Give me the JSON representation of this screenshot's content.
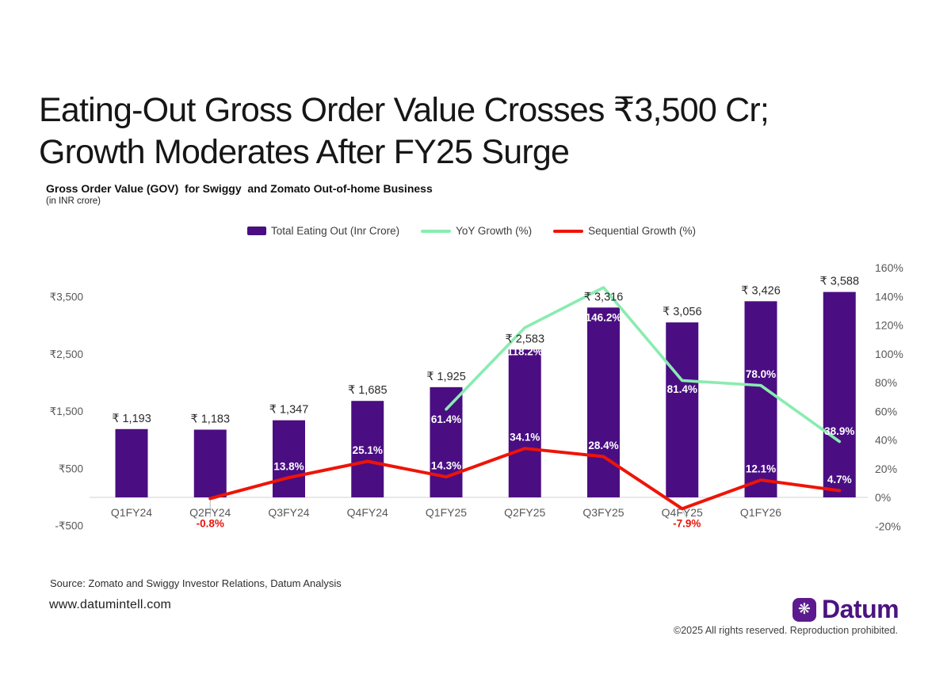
{
  "title": {
    "line1": "Eating-Out Gross Order Value Crosses ₹3,500 Cr;",
    "line2": "Growth Moderates After FY25 Surge"
  },
  "legend": {
    "items": [
      {
        "label": "Total Eating Out (Inr Crore)",
        "type": "swatch",
        "color": "#4A0E82"
      },
      {
        "label": "YoY Growth (%)",
        "type": "line",
        "color": "#89ECB0"
      },
      {
        "label": "Sequential Growth (%)",
        "type": "line",
        "color": "#EE1408"
      }
    ]
  },
  "chart_data": {
    "type": "combo bar + line",
    "title": "Gross Order Value (GOV)  for Swiggy  and Zomato Out-of-home Business",
    "unit_note": "(in INR crore)",
    "categories": [
      "Q1FY24",
      "Q2FY24",
      "Q3FY24",
      "Q4FY24",
      "Q1FY25",
      "Q2FY25",
      "Q3FY25",
      "Q4FY25",
      "Q1FY26",
      ""
    ],
    "series": [
      {
        "name": "Total Eating Out (Inr Crore)",
        "type": "bar",
        "axis": "left",
        "color": "#4A0E82",
        "values": [
          1193,
          1183,
          1347,
          1685,
          1925,
          2583,
          3316,
          3056,
          3426,
          3588
        ],
        "value_labels": [
          "₹ 1,193",
          "₹ 1,183",
          "₹ 1,347",
          "₹ 1,685",
          "₹ 1,925",
          "₹ 2,583",
          "₹ 3,316",
          "₹ 3,056",
          "₹ 3,426",
          "₹ 3,588"
        ]
      },
      {
        "name": "YoY Growth (%)",
        "type": "line",
        "axis": "right",
        "color": "#89ECB0",
        "values": [
          null,
          null,
          null,
          null,
          61.4,
          118.2,
          146.2,
          81.4,
          78.0,
          38.9
        ],
        "point_labels": [
          null,
          null,
          null,
          null,
          "61.4%",
          "118.2%",
          "146.2%",
          "81.4%",
          "78.0%",
          "38.9%"
        ]
      },
      {
        "name": "Sequential Growth (%)",
        "type": "line",
        "axis": "right",
        "color": "#EE1408",
        "values": [
          null,
          -0.8,
          13.8,
          25.1,
          14.3,
          34.1,
          28.4,
          -7.9,
          12.1,
          4.7
        ],
        "point_labels": [
          null,
          "-0.8%",
          "13.8%",
          "25.1%",
          "14.3%",
          "34.1%",
          "28.4%",
          "-7.9%",
          "12.1%",
          "4.7%"
        ]
      }
    ],
    "left_axis": {
      "ticks": [
        {
          "label": "₹3,500",
          "value": 3500
        },
        {
          "label": "₹2,500",
          "value": 2500
        },
        {
          "label": "₹1,500",
          "value": 1500
        },
        {
          "label": "₹500",
          "value": 500
        },
        {
          "label": "-₹500",
          "value": -500
        }
      ]
    },
    "right_axis": {
      "ticks": [
        {
          "label": "160%",
          "value": 160
        },
        {
          "label": "140%",
          "value": 140
        },
        {
          "label": "120%",
          "value": 120
        },
        {
          "label": "100%",
          "value": 100
        },
        {
          "label": "80%",
          "value": 80
        },
        {
          "label": "60%",
          "value": 60
        },
        {
          "label": "40%",
          "value": 40
        },
        {
          "label": "20%",
          "value": 20
        },
        {
          "label": "0%",
          "value": 0
        },
        {
          "label": "-20%",
          "value": -20
        }
      ]
    },
    "layout": {
      "left_axis_range": [
        -500,
        3980
      ],
      "right_axis_range": [
        -20,
        160
      ],
      "grid": "zero-line only",
      "legend_position": "top-center"
    }
  },
  "footer": {
    "source": "Source: Zomato and Swiggy Investor Relations, Datum Analysis",
    "website": "www.datumintell.com",
    "brand": {
      "name": "Datum",
      "icon": "❋",
      "icon_bg": "#5C1A8E",
      "text_color": "#4B1380"
    },
    "copyright": "©2025 All rights reserved. Reproduction prohibited."
  }
}
